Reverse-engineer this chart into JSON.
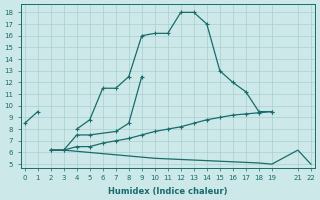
{
  "xlabel": "Humidex (Indice chaleur)",
  "bg_color": "#cce8e8",
  "grid_color": "#aacfcf",
  "line_color": "#1a6b6b",
  "xticks": [
    0,
    1,
    2,
    3,
    4,
    5,
    6,
    7,
    8,
    9,
    10,
    11,
    12,
    13,
    14,
    15,
    16,
    17,
    18,
    19,
    21,
    22
  ],
  "yticks": [
    5,
    6,
    7,
    8,
    9,
    10,
    11,
    12,
    13,
    14,
    15,
    16,
    17,
    18
  ],
  "xlim": [
    -0.3,
    22.3
  ],
  "ylim": [
    4.7,
    18.7
  ],
  "line1_segments": [
    {
      "x": [
        0,
        1
      ],
      "y": [
        8.5,
        9.5
      ]
    },
    {
      "x": [
        4,
        5,
        6,
        7,
        8,
        9,
        10,
        11,
        12,
        13,
        14,
        15,
        16,
        17,
        18,
        19
      ],
      "y": [
        8.0,
        8.8,
        11.5,
        11.5,
        12.5,
        16.0,
        16.2,
        16.2,
        18.0,
        18.0,
        17.0,
        13.0,
        12.0,
        11.2,
        9.5,
        9.5
      ]
    }
  ],
  "line2_x": [
    2,
    3,
    4,
    5,
    7,
    8,
    9
  ],
  "line2_y": [
    6.2,
    6.2,
    7.5,
    7.5,
    7.8,
    8.5,
    12.5
  ],
  "line3_x": [
    2,
    3,
    4,
    5,
    6,
    7,
    8,
    9,
    10,
    11,
    12,
    13,
    14,
    15,
    16,
    17,
    18,
    19
  ],
  "line3_y": [
    6.2,
    6.2,
    6.5,
    6.5,
    6.8,
    7.0,
    7.2,
    7.5,
    7.8,
    8.0,
    8.2,
    8.5,
    8.8,
    9.0,
    9.2,
    9.3,
    9.4,
    9.5
  ],
  "line4_x": [
    2,
    3,
    4,
    5,
    6,
    7,
    8,
    9,
    10,
    11,
    12,
    13,
    14,
    15,
    16,
    17,
    18,
    19,
    21,
    22
  ],
  "line4_y": [
    6.2,
    6.2,
    6.1,
    6.0,
    5.9,
    5.8,
    5.7,
    5.6,
    5.5,
    5.45,
    5.4,
    5.35,
    5.3,
    5.25,
    5.2,
    5.15,
    5.1,
    5.0,
    6.2,
    5.0
  ]
}
